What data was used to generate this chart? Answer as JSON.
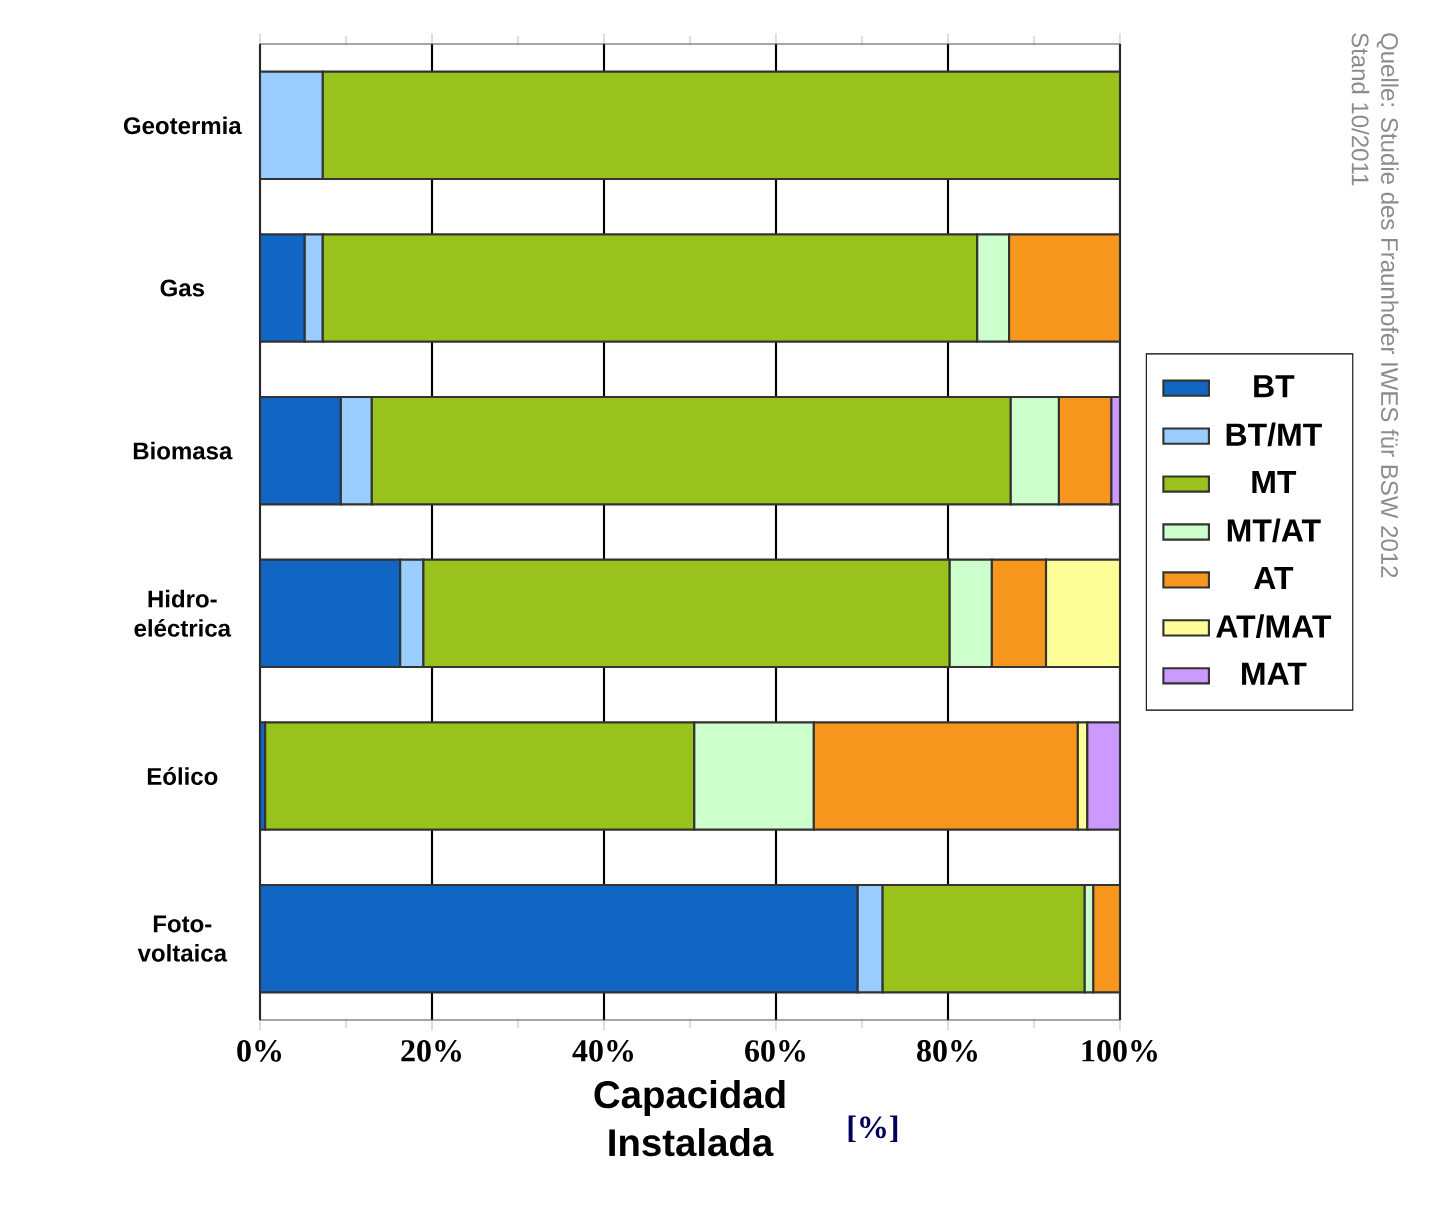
{
  "chart_data": {
    "type": "bar",
    "orientation": "horizontal",
    "stacked": true,
    "categories": [
      "Geotermia",
      "Gas",
      "Biomasa",
      "Hidro- eléctrica",
      "Eólico",
      "Foto- voltaica"
    ],
    "series": [
      {
        "name": "BT",
        "color": "#1166c4",
        "values": [
          null,
          5.2,
          9.4,
          16.3,
          0.6,
          69.5
        ]
      },
      {
        "name": "BT/MT",
        "color": "#99ccff",
        "values": [
          7.3,
          2.1,
          3.6,
          2.7,
          null,
          2.9
        ]
      },
      {
        "name": "MT",
        "color": "#99c31c",
        "values": [
          92.7,
          76.1,
          74.3,
          61.2,
          49.9,
          23.5
        ]
      },
      {
        "name": "MT/AT",
        "color": "#ccffcc",
        "values": [
          null,
          3.7,
          5.6,
          4.9,
          13.9,
          1.0
        ]
      },
      {
        "name": "AT",
        "color": "#f7961c",
        "values": [
          null,
          12.9,
          6.1,
          6.3,
          30.7,
          3.1
        ]
      },
      {
        "name": "AT/MAT",
        "color": "#ffff99",
        "values": [
          null,
          null,
          null,
          8.6,
          1.1,
          null
        ]
      },
      {
        "name": "MAT",
        "color": "#cc99ff",
        "values": [
          null,
          null,
          1.0,
          null,
          3.8,
          null
        ]
      }
    ],
    "xlabel": "Capacidad Instalada",
    "xlim": [
      0,
      100
    ],
    "xticks": [
      {
        "value": 0,
        "label": "0%"
      },
      {
        "value": 10,
        "label": null
      },
      {
        "value": 20,
        "label": "20%"
      },
      {
        "value": 30,
        "label": null
      },
      {
        "value": 40,
        "label": "40%"
      },
      {
        "value": 50,
        "label": null
      },
      {
        "value": 60,
        "label": "60%"
      },
      {
        "value": 70,
        "label": null
      },
      {
        "value": 80,
        "label": "80%"
      },
      {
        "value": 90,
        "label": null
      },
      {
        "value": 100,
        "label": "100%"
      }
    ],
    "grid": "x",
    "legend": "right",
    "annotations": [
      "Quelle: Studie des Fraunhofer IWES für BSW 2012",
      "Stand 10/2011",
      "[%]"
    ]
  }
}
